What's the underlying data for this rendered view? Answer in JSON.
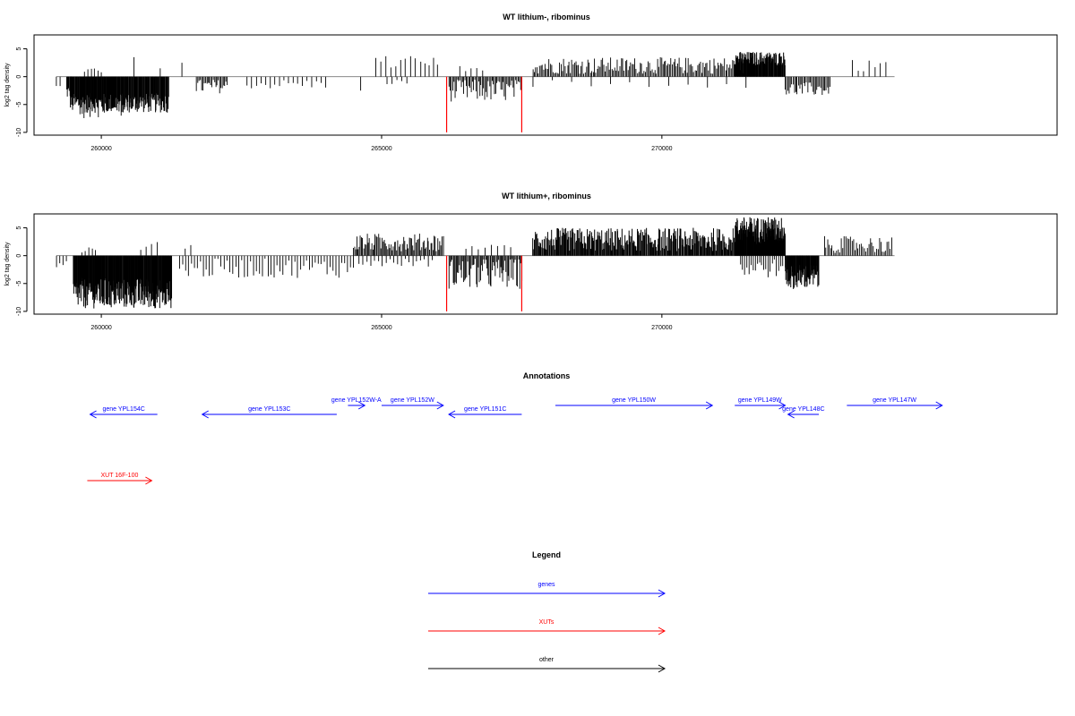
{
  "chart_data": [
    {
      "type": "bar",
      "title": "WT lithium-, ribominus",
      "xlabel": "",
      "ylabel": "log2 tag density",
      "xlim": [
        258800,
        277050
      ],
      "ylim": [
        -10.5,
        7.5
      ],
      "yticks": [
        "5",
        "0",
        "-5",
        "-10"
      ],
      "ytick_values": [
        5,
        0,
        -5,
        -10
      ],
      "xticks": [
        "260000",
        "265000",
        "270000"
      ],
      "xtick_values": [
        260000,
        265000,
        270000
      ],
      "baseline": {
        "from": 259200,
        "to": 274150
      },
      "series": [
        {
          "color": "#000000",
          "segments": [
            {
              "start": 259200,
              "end": 259260,
              "bars": 2,
              "min": -2,
              "max": -1.5
            },
            {
              "start": 259380,
              "end": 259470,
              "bars": 10,
              "min": -4,
              "max": -1.5
            },
            {
              "start": 259450,
              "end": 261200,
              "bars": 180,
              "min": -6.5,
              "max": -3,
              "dense": true
            },
            {
              "start": 259620,
              "end": 260500,
              "bars": 25,
              "min": -7.5,
              "max": -4
            },
            {
              "start": 259700,
              "end": 260000,
              "bars": 6,
              "min": 0.5,
              "max": 1.5
            },
            {
              "start": 260560,
              "end": 260600,
              "bars": 1,
              "min": 3.5,
              "max": 3.5
            },
            {
              "start": 261030,
              "end": 261080,
              "bars": 1,
              "min": 1.5,
              "max": 1.5
            },
            {
              "start": 261420,
              "end": 261450,
              "bars": 1,
              "min": 2.5,
              "max": 2.5
            },
            {
              "start": 261700,
              "end": 262250,
              "bars": 25,
              "min": -3,
              "max": -0.5
            },
            {
              "start": 262600,
              "end": 264000,
              "bars": 18,
              "min": -2.2,
              "max": -0.5
            },
            {
              "start": 264600,
              "end": 264650,
              "bars": 1,
              "min": -2.5,
              "max": -2.5
            },
            {
              "start": 264900,
              "end": 265600,
              "bars": 9,
              "min": 1,
              "max": 4
            },
            {
              "start": 265100,
              "end": 265450,
              "bars": 5,
              "min": -1.5,
              "max": -0.5
            },
            {
              "start": 265700,
              "end": 266000,
              "bars": 5,
              "min": 1.5,
              "max": 3.5
            },
            {
              "start": 266200,
              "end": 267500,
              "bars": 60,
              "min": -4.5,
              "max": -0.5
            },
            {
              "start": 266400,
              "end": 266800,
              "bars": 5,
              "min": 1,
              "max": 2
            },
            {
              "start": 267700,
              "end": 271500,
              "bars": 160,
              "min": 0.5,
              "max": 3.5
            },
            {
              "start": 267700,
              "end": 271500,
              "bars": 12,
              "min": -2,
              "max": -0.5
            },
            {
              "start": 271300,
              "end": 272200,
              "bars": 110,
              "min": 2,
              "max": 4.5,
              "dense": true
            },
            {
              "start": 272200,
              "end": 273000,
              "bars": 35,
              "min": -3.5,
              "max": -1
            },
            {
              "start": 273400,
              "end": 274000,
              "bars": 7,
              "min": 0.8,
              "max": 3
            }
          ]
        },
        {
          "color": "#ff0000",
          "values": [
            [
              266160,
              -10
            ],
            [
              267500,
              -10
            ]
          ]
        }
      ]
    },
    {
      "type": "bar",
      "title": "WT lithium+, ribominus",
      "xlabel": "",
      "ylabel": "log2 tag density",
      "xlim": [
        258800,
        277050
      ],
      "ylim": [
        -10.5,
        7.5
      ],
      "yticks": [
        "5",
        "0",
        "-5",
        "-10"
      ],
      "ytick_values": [
        5,
        0,
        -5,
        -10
      ],
      "xticks": [
        "260000",
        "265000",
        "270000"
      ],
      "xtick_values": [
        260000,
        265000,
        270000
      ],
      "baseline": {
        "from": 259200,
        "to": 274150
      },
      "series": [
        {
          "color": "#000000",
          "segments": [
            {
              "start": 259200,
              "end": 259380,
              "bars": 4,
              "min": -2.2,
              "max": -1
            },
            {
              "start": 259500,
              "end": 261250,
              "bars": 250,
              "min": -9.5,
              "max": -4,
              "dense": true
            },
            {
              "start": 259650,
              "end": 259900,
              "bars": 5,
              "min": 0.5,
              "max": 1.5
            },
            {
              "start": 260700,
              "end": 261000,
              "bars": 4,
              "min": 1,
              "max": 3
            },
            {
              "start": 261400,
              "end": 264500,
              "bars": 60,
              "min": -4,
              "max": -0.5
            },
            {
              "start": 261500,
              "end": 261600,
              "bars": 2,
              "min": 1,
              "max": 2
            },
            {
              "start": 264500,
              "end": 266100,
              "bars": 80,
              "min": 0.8,
              "max": 4
            },
            {
              "start": 264600,
              "end": 265900,
              "bars": 20,
              "min": -2,
              "max": -0.5
            },
            {
              "start": 266200,
              "end": 267500,
              "bars": 70,
              "min": -6,
              "max": -0.5
            },
            {
              "start": 266500,
              "end": 267300,
              "bars": 8,
              "min": 1,
              "max": 2
            },
            {
              "start": 267700,
              "end": 271300,
              "bars": 260,
              "min": 0.8,
              "max": 5,
              "dense": true
            },
            {
              "start": 271300,
              "end": 272200,
              "bars": 160,
              "min": 2,
              "max": 7,
              "dense": true
            },
            {
              "start": 271400,
              "end": 272500,
              "bars": 30,
              "min": -4,
              "max": -0.5
            },
            {
              "start": 272200,
              "end": 272800,
              "bars": 80,
              "min": -6,
              "max": -1.5,
              "dense": true
            },
            {
              "start": 272900,
              "end": 274100,
              "bars": 45,
              "min": 0.5,
              "max": 3.5
            }
          ]
        },
        {
          "color": "#ff0000",
          "values": [
            [
              266160,
              -10
            ],
            [
              267500,
              -10
            ]
          ]
        }
      ]
    }
  ],
  "annotations": {
    "title": "Annotations",
    "features": [
      {
        "label": "gene YPL154C",
        "type": "gene",
        "start": 261000,
        "end": 259800,
        "row": 1
      },
      {
        "label": "gene YPL153C",
        "type": "gene",
        "start": 264200,
        "end": 261800,
        "row": 1
      },
      {
        "label": "gene YPL152W-A",
        "type": "gene",
        "start": 264400,
        "end": 264700,
        "row": 0
      },
      {
        "label": "gene YPL152W",
        "type": "gene",
        "start": 265000,
        "end": 266100,
        "row": 0
      },
      {
        "label": "gene YPL151C",
        "type": "gene",
        "start": 267500,
        "end": 266200,
        "row": 1
      },
      {
        "label": "gene YPL150W",
        "type": "gene",
        "start": 268100,
        "end": 270900,
        "row": 0
      },
      {
        "label": "gene YPL149W",
        "type": "gene",
        "start": 271300,
        "end": 272200,
        "row": 0
      },
      {
        "label": "gene YPL148C",
        "type": "gene",
        "start": 272800,
        "end": 272250,
        "row": 1
      },
      {
        "label": "gene YPL147W",
        "type": "gene",
        "start": 273300,
        "end": 275000,
        "row": 0
      },
      {
        "label": "XUT 16F-100",
        "type": "xut",
        "start": 259750,
        "end": 260900,
        "row": 2
      }
    ]
  },
  "legend": {
    "title": "Legend",
    "items": [
      {
        "label": "genes",
        "color": "#0000ff"
      },
      {
        "label": "XUTs",
        "color": "#ff0000"
      },
      {
        "label": "other",
        "color": "#000000"
      }
    ]
  },
  "colors": {
    "gene": "#0000ff",
    "xut": "#ff0000",
    "other": "#000000"
  }
}
